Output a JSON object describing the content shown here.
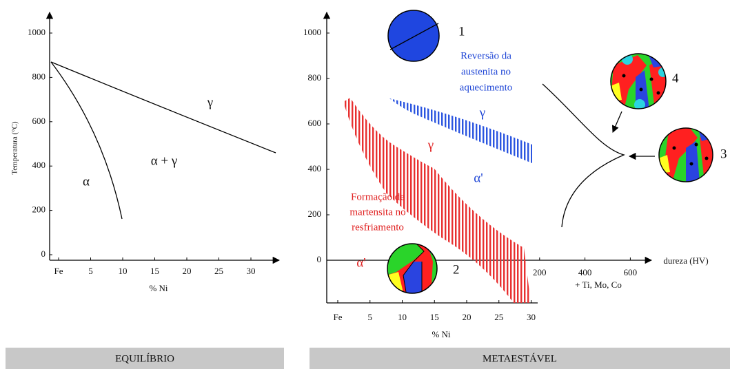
{
  "left": {
    "y_axis_label": "Temperatura (°C)",
    "yticks": [
      0,
      200,
      400,
      600,
      800,
      1000
    ],
    "xticks": [
      {
        "value": 0,
        "label": "Fe"
      },
      5,
      10,
      15,
      20,
      25,
      30
    ],
    "x_axis_label": "% Ni",
    "regions": [
      "γ",
      "α + γ",
      "α"
    ],
    "caption": "EQUILÍBRIO"
  },
  "right": {
    "yticks": [
      0,
      200,
      400,
      600,
      800,
      1000
    ],
    "xticks": [
      {
        "value": 0,
        "label": "Fe"
      },
      5,
      10,
      15,
      20,
      25,
      30
    ],
    "x_axis_label": "% Ni",
    "hardness_ticks": [
      200,
      400,
      600
    ],
    "hardness_axis_label": "dureza (HV)",
    "hardness_note": "+ Ti, Mo, Co",
    "reversion_label": [
      "Reversão da",
      "austenita no",
      "aquecimento"
    ],
    "martensite_label": [
      "Formação de",
      "martensita no",
      "resfriamento"
    ],
    "regions": {
      "gamma_blue": "γ",
      "gamma_red": "γ",
      "alpha_blue": "α'",
      "alpha_red": "α'"
    },
    "microstructures": [
      "1",
      "2",
      "3",
      "4"
    ],
    "caption": "METAESTÁVEL"
  }
}
